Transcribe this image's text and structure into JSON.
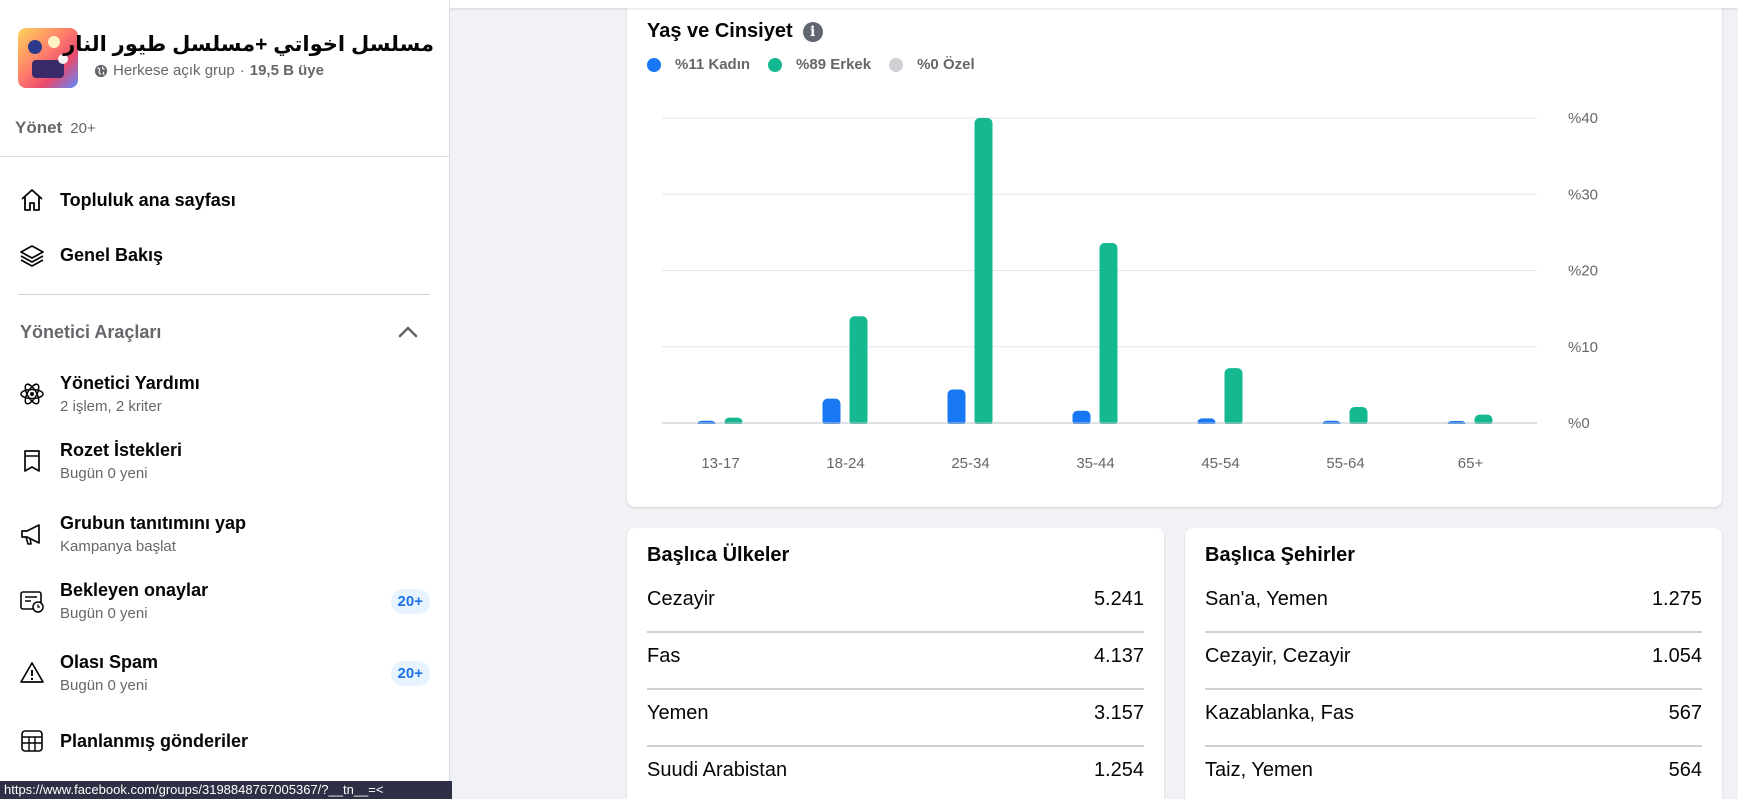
{
  "group": {
    "name": "مسلسل اخواتي +مسلسل طيور النار",
    "privacy": "Herkese açık grup",
    "separator": " · ",
    "members": "19,5 B üye"
  },
  "manage": {
    "label": "Yönet",
    "badge": "20+"
  },
  "nav_top": [
    {
      "title": "Topluluk ana sayfası",
      "icon": "home-icon"
    },
    {
      "title": "Genel Bakış",
      "icon": "layers-icon"
    }
  ],
  "admin_tools": {
    "title": "Yönetici Araçları",
    "items": [
      {
        "title": "Yönetici Yardımı",
        "sub": "2 işlem, 2 kriter",
        "icon": "atom-icon"
      },
      {
        "title": "Rozet İstekleri",
        "sub": "Bugün 0 yeni",
        "icon": "badge-shield-icon"
      },
      {
        "title": "Grubun tanıtımını yap",
        "sub": "Kampanya başlat",
        "icon": "megaphone-icon"
      },
      {
        "title": "Bekleyen onaylar",
        "sub": "Bugün 0 yeni",
        "icon": "pending-clock-icon",
        "pill": "20+"
      },
      {
        "title": "Olası Spam",
        "sub": "Bugün 0 yeni",
        "icon": "warning-icon",
        "pill": "20+"
      },
      {
        "title": "Planlanmış gönderiler",
        "icon": "calendar-grid-icon"
      }
    ]
  },
  "status_url": "https://www.facebook.com/groups/3198848767005367/?__tn__=<",
  "colors": {
    "female": "#1877f2",
    "male": "#15b991",
    "other": "#ced0d4"
  },
  "chart_data": {
    "type": "bar",
    "title": "Yaş ve Cinsiyet",
    "categories": [
      "13-17",
      "18-24",
      "25-34",
      "35-44",
      "45-54",
      "55-64",
      "65+"
    ],
    "series": [
      {
        "name": "Kadın",
        "legend": "%11 Kadın",
        "values": [
          0.3,
          3.2,
          4.4,
          1.6,
          0.6,
          0.3,
          0.2
        ]
      },
      {
        "name": "Erkek",
        "legend": "%89 Erkek",
        "values": [
          0.7,
          14,
          40,
          23.6,
          7.2,
          2.1,
          1.1
        ]
      },
      {
        "name": "Özel",
        "legend": "%0 Özel",
        "values": [
          0,
          0,
          0,
          0,
          0,
          0,
          0
        ]
      }
    ],
    "yticks": [
      "%0",
      "%10",
      "%20",
      "%30",
      "%40"
    ],
    "ytick_values": [
      0,
      10,
      20,
      30,
      40
    ],
    "ylim": [
      0,
      40
    ],
    "grid": true
  },
  "top_countries": {
    "title": "Başlıca Ülkeler",
    "rows": [
      {
        "name": "Cezayir",
        "value": "5.241"
      },
      {
        "name": "Fas",
        "value": "4.137"
      },
      {
        "name": "Yemen",
        "value": "3.157"
      },
      {
        "name": "Suudi Arabistan",
        "value": "1.254"
      }
    ]
  },
  "top_cities": {
    "title": "Başlıca Şehirler",
    "rows": [
      {
        "name": "San'a, Yemen",
        "value": "1.275"
      },
      {
        "name": "Cezayir, Cezayir",
        "value": "1.054"
      },
      {
        "name": "Kazablanka, Fas",
        "value": "567"
      },
      {
        "name": "Taiz, Yemen",
        "value": "564"
      }
    ]
  }
}
